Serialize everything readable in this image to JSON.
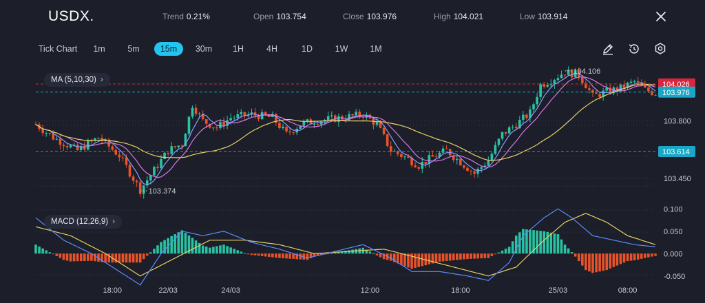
{
  "header": {
    "symbol": "USDX.",
    "stats": [
      {
        "label": "Trend",
        "value": "0.21%"
      },
      {
        "label": "Open",
        "value": "103.754"
      },
      {
        "label": "Close",
        "value": "103.976"
      },
      {
        "label": "High",
        "value": "104.021"
      },
      {
        "label": "Low",
        "value": "103.914"
      }
    ]
  },
  "toolbar": {
    "timeframes": [
      "Tick Chart",
      "1m",
      "5m",
      "15m",
      "30m",
      "1H",
      "4H",
      "1D",
      "1W",
      "1M"
    ],
    "active_timeframe": "15m",
    "icons": [
      "pencil-icon",
      "history-icon",
      "settings-icon"
    ]
  },
  "colors": {
    "up": "#29c3a3",
    "down": "#e8532a",
    "ma5": "#8c9cff",
    "ma10": "#d977e8",
    "ma30": "#e9d267",
    "red_tag": "#d9263e",
    "blue_tag": "#1aa7c7",
    "background": "#1c1e29"
  },
  "chart_data": {
    "type": "candlestick",
    "indicator_label": "MA (5,10,30)",
    "y_ticks": [
      "103.800",
      "103.450"
    ],
    "price_tags": [
      {
        "label": "104.026",
        "value": 104.026,
        "color": "red"
      },
      {
        "label": "103.976",
        "value": 103.976,
        "color": "blue"
      },
      {
        "label": "103.614",
        "value": 103.614,
        "color": "blue"
      }
    ],
    "annotations": [
      {
        "label": "104.106",
        "value": 104.106,
        "kind": "high"
      },
      {
        "label": "103.374",
        "value": 103.374,
        "kind": "low"
      }
    ],
    "x_ticks": [
      "18:00",
      "22/03",
      "24/03",
      "12:00",
      "18:00",
      "25/03",
      "08:00"
    ],
    "candle_path": [
      [
        0,
        103.78
      ],
      [
        5,
        103.7
      ],
      [
        12,
        103.62
      ],
      [
        18,
        103.7
      ],
      [
        24,
        103.59
      ],
      [
        28,
        103.45
      ],
      [
        30,
        103.38
      ],
      [
        34,
        103.5
      ],
      [
        38,
        103.62
      ],
      [
        42,
        103.66
      ],
      [
        45,
        103.9
      ],
      [
        48,
        103.8
      ],
      [
        52,
        103.76
      ],
      [
        56,
        103.82
      ],
      [
        62,
        103.84
      ],
      [
        68,
        103.82
      ],
      [
        72,
        103.72
      ],
      [
        76,
        103.78
      ],
      [
        80,
        103.8
      ],
      [
        88,
        103.82
      ],
      [
        94,
        103.84
      ],
      [
        98,
        103.78
      ],
      [
        102,
        103.62
      ],
      [
        106,
        103.58
      ],
      [
        110,
        103.53
      ],
      [
        114,
        103.58
      ],
      [
        118,
        103.62
      ],
      [
        122,
        103.55
      ],
      [
        126,
        103.48
      ],
      [
        130,
        103.56
      ],
      [
        134,
        103.72
      ],
      [
        138,
        103.78
      ],
      [
        142,
        103.85
      ],
      [
        145,
        104.02
      ],
      [
        148,
        104.05
      ],
      [
        152,
        104.1
      ],
      [
        156,
        104.08
      ],
      [
        158,
        104.02
      ],
      [
        160,
        103.95
      ],
      [
        164,
        103.98
      ],
      [
        168,
        104.0
      ],
      [
        172,
        104.04
      ],
      [
        175,
        103.99
      ],
      [
        178,
        103.97
      ]
    ],
    "macd": {
      "label": "MACD (12,26,9)",
      "y_ticks": [
        "0.100",
        "0.050",
        "0.000",
        "-0.050"
      ],
      "macd_line": [
        [
          0,
          0.08
        ],
        [
          8,
          0.03
        ],
        [
          16,
          0.0
        ],
        [
          24,
          -0.04
        ],
        [
          30,
          -0.07
        ],
        [
          36,
          0.0
        ],
        [
          42,
          0.05
        ],
        [
          48,
          0.04
        ],
        [
          54,
          0.05
        ],
        [
          62,
          0.025
        ],
        [
          70,
          0.01
        ],
        [
          78,
          -0.01
        ],
        [
          86,
          0.005
        ],
        [
          94,
          0.02
        ],
        [
          102,
          -0.01
        ],
        [
          108,
          -0.04
        ],
        [
          116,
          -0.04
        ],
        [
          124,
          -0.05
        ],
        [
          130,
          -0.06
        ],
        [
          136,
          -0.02
        ],
        [
          140,
          0.04
        ],
        [
          146,
          0.08
        ],
        [
          150,
          0.1
        ],
        [
          154,
          0.08
        ],
        [
          160,
          0.04
        ],
        [
          166,
          0.03
        ],
        [
          172,
          0.02
        ],
        [
          178,
          0.015
        ]
      ],
      "signal_line": [
        [
          0,
          0.06
        ],
        [
          10,
          0.04
        ],
        [
          20,
          0.0
        ],
        [
          30,
          -0.05
        ],
        [
          40,
          -0.01
        ],
        [
          50,
          0.03
        ],
        [
          60,
          0.03
        ],
        [
          70,
          0.02
        ],
        [
          80,
          0.0
        ],
        [
          90,
          0.005
        ],
        [
          100,
          0.01
        ],
        [
          110,
          -0.01
        ],
        [
          120,
          -0.03
        ],
        [
          130,
          -0.05
        ],
        [
          138,
          -0.03
        ],
        [
          146,
          0.03
        ],
        [
          152,
          0.07
        ],
        [
          158,
          0.09
        ],
        [
          164,
          0.07
        ],
        [
          170,
          0.04
        ],
        [
          178,
          0.02
        ]
      ]
    }
  }
}
